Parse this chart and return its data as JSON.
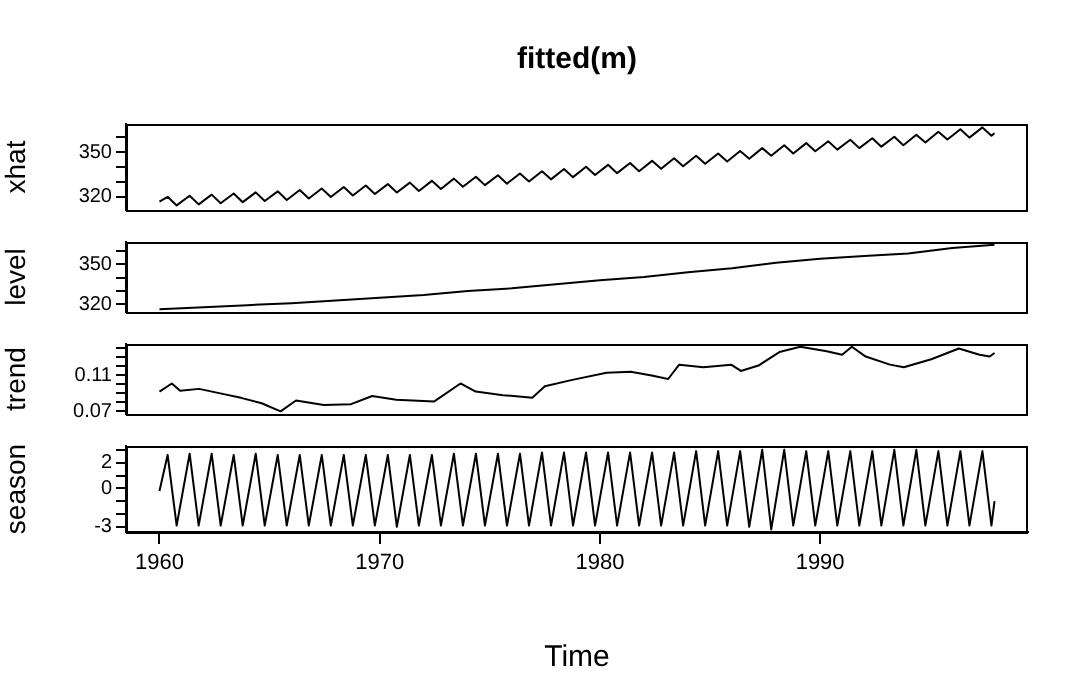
{
  "chart_data": [
    {
      "type": "line",
      "title": "fitted(m)",
      "ylabel": "xhat",
      "xlim": [
        1958.48,
        1999.44
      ],
      "ylim": [
        310.9,
        369.0
      ],
      "yticks": [
        320,
        {
          "value": 330,
          "label": null
        },
        {
          "value": 340,
          "label": null
        },
        350,
        {
          "value": 360,
          "label": null
        }
      ],
      "tick_labels": "y",
      "series": [
        {
          "color": "#000000",
          "x": [
            1960.0,
            1960.37,
            1960.78,
            1961.37,
            1961.78,
            1962.37,
            1962.78,
            1963.37,
            1963.78,
            1964.37,
            1964.78,
            1965.37,
            1965.78,
            1966.37,
            1966.78,
            1967.37,
            1967.78,
            1968.37,
            1968.78,
            1969.37,
            1969.78,
            1970.37,
            1970.78,
            1971.37,
            1971.78,
            1972.37,
            1972.78,
            1973.37,
            1973.78,
            1974.37,
            1974.78,
            1975.37,
            1975.78,
            1976.37,
            1976.78,
            1977.37,
            1977.78,
            1978.37,
            1978.78,
            1979.37,
            1979.78,
            1980.37,
            1980.78,
            1981.37,
            1981.78,
            1982.37,
            1982.78,
            1983.37,
            1983.78,
            1984.37,
            1984.78,
            1985.37,
            1985.78,
            1986.37,
            1986.78,
            1987.37,
            1987.78,
            1988.37,
            1988.78,
            1989.37,
            1989.78,
            1990.37,
            1990.78,
            1991.37,
            1991.78,
            1992.37,
            1992.78,
            1993.37,
            1993.78,
            1994.37,
            1994.78,
            1995.37,
            1995.78,
            1996.37,
            1996.78,
            1997.37,
            1997.78,
            1997.92
          ],
          "values": [
            316.5,
            319.8,
            314.0,
            320.5,
            314.7,
            321.3,
            315.5,
            322.0,
            316.2,
            322.8,
            317.0,
            323.5,
            317.7,
            324.4,
            318.7,
            325.4,
            319.7,
            326.4,
            320.7,
            327.4,
            321.7,
            328.4,
            322.7,
            329.4,
            323.7,
            330.6,
            325.1,
            332.1,
            326.6,
            333.4,
            327.7,
            334.4,
            328.7,
            335.6,
            330.1,
            337.1,
            331.6,
            338.6,
            333.1,
            340.1,
            334.6,
            341.4,
            335.8,
            342.7,
            337.1,
            344.1,
            338.7,
            345.9,
            340.5,
            347.6,
            342.1,
            349.1,
            343.6,
            350.7,
            345.5,
            352.7,
            347.5,
            354.6,
            349.1,
            356.1,
            350.6,
            357.4,
            351.7,
            358.4,
            352.7,
            359.4,
            353.7,
            360.4,
            354.7,
            361.7,
            356.5,
            363.7,
            358.5,
            365.4,
            359.8,
            366.7,
            361.1,
            362.8
          ]
        }
      ]
    },
    {
      "type": "line",
      "ylabel": "level",
      "xlim": [
        1958.48,
        1999.44
      ],
      "ylim": [
        314.4,
        366.5
      ],
      "yticks": [
        320,
        {
          "value": 330,
          "label": null
        },
        {
          "value": 340,
          "label": null
        },
        350,
        {
          "value": 360,
          "label": null
        }
      ],
      "tick_labels": "y",
      "series": [
        {
          "color": "#000000",
          "x": [
            1960,
            1962,
            1964,
            1966,
            1968,
            1970,
            1972,
            1974,
            1976,
            1978,
            1980,
            1982,
            1984,
            1986,
            1988,
            1990,
            1992,
            1994,
            1996,
            1997.92
          ],
          "values": [
            316.5,
            318,
            319.5,
            321,
            323,
            325,
            327,
            330,
            332,
            335,
            338,
            340.5,
            344,
            347,
            351,
            354,
            356,
            358,
            362,
            364.5
          ]
        }
      ]
    },
    {
      "type": "line",
      "ylabel": "trend",
      "xlim": [
        1958.48,
        1999.44
      ],
      "ylim": [
        0.067,
        0.145
      ],
      "yticks": [
        0.07,
        {
          "value": 0.08,
          "label": null
        },
        {
          "value": 0.09,
          "label": null
        },
        {
          "value": 0.1,
          "label": null
        },
        0.11,
        {
          "value": 0.12,
          "label": null
        },
        {
          "value": 0.13,
          "label": null
        },
        {
          "value": 0.14,
          "label": null
        }
      ],
      "tick_labels": "y",
      "series": [
        {
          "color": "#000000",
          "x": [
            1960.0,
            1960.56,
            1960.94,
            1961.8,
            1962.76,
            1963.7,
            1964.64,
            1965.5,
            1966.2,
            1967.46,
            1968.7,
            1969.66,
            1970.75,
            1972.48,
            1973.67,
            1974.36,
            1975.6,
            1976.93,
            1977.5,
            1978.75,
            1980.3,
            1981.4,
            1982.35,
            1983.1,
            1983.6,
            1984.7,
            1985.96,
            1986.4,
            1987.2,
            1988.15,
            1989.1,
            1990.3,
            1991.0,
            1991.44,
            1992.07,
            1993.17,
            1993.8,
            1995.05,
            1996.3,
            1997.24,
            1997.7,
            1997.92
          ],
          "values": [
            0.092,
            0.101,
            0.093,
            0.095,
            0.09,
            0.085,
            0.079,
            0.07,
            0.082,
            0.077,
            0.078,
            0.087,
            0.083,
            0.081,
            0.101,
            0.092,
            0.088,
            0.085,
            0.098,
            0.105,
            0.113,
            0.114,
            0.11,
            0.106,
            0.122,
            0.119,
            0.122,
            0.115,
            0.121,
            0.136,
            0.142,
            0.137,
            0.133,
            0.142,
            0.131,
            0.122,
            0.119,
            0.128,
            0.14,
            0.133,
            0.131,
            0.135
          ]
        }
      ]
    },
    {
      "type": "line",
      "xlabel": "Time",
      "ylabel": "season",
      "xlim": [
        1958.48,
        1999.44
      ],
      "xticks": [
        1960,
        1970,
        1980,
        1990
      ],
      "ylim": [
        -3.4,
        3.3
      ],
      "yticks": [
        -3,
        {
          "value": -2,
          "label": null
        },
        {
          "value": -1,
          "label": null
        },
        0,
        {
          "value": 1,
          "label": null
        },
        2,
        {
          "value": 3,
          "label": null
        }
      ],
      "series": [
        {
          "color": "#000000",
          "x": [
            1960.0,
            1960.37,
            1960.78,
            1961.37,
            1961.78,
            1962.37,
            1962.78,
            1963.37,
            1963.78,
            1964.37,
            1964.78,
            1965.37,
            1965.78,
            1966.37,
            1966.78,
            1967.37,
            1967.78,
            1968.37,
            1968.78,
            1969.37,
            1969.78,
            1970.37,
            1970.78,
            1971.37,
            1971.78,
            1972.37,
            1972.78,
            1973.37,
            1973.78,
            1974.37,
            1974.78,
            1975.37,
            1975.78,
            1976.37,
            1976.78,
            1977.37,
            1977.78,
            1978.37,
            1978.78,
            1979.37,
            1979.78,
            1980.37,
            1980.78,
            1981.37,
            1981.78,
            1982.37,
            1982.78,
            1983.37,
            1983.78,
            1984.37,
            1984.78,
            1985.37,
            1985.78,
            1986.37,
            1986.78,
            1987.37,
            1987.78,
            1988.37,
            1988.78,
            1989.37,
            1989.78,
            1990.37,
            1990.78,
            1991.37,
            1991.78,
            1992.37,
            1992.78,
            1993.37,
            1993.78,
            1994.37,
            1994.78,
            1995.37,
            1995.78,
            1996.37,
            1996.78,
            1997.37,
            1997.78,
            1997.92
          ],
          "values": [
            -0.2,
            2.6,
            -2.9,
            2.7,
            -2.9,
            2.7,
            -2.9,
            2.6,
            -2.9,
            2.7,
            -2.9,
            2.6,
            -2.9,
            2.6,
            -2.9,
            2.6,
            -2.9,
            2.6,
            -2.9,
            2.6,
            -2.9,
            2.6,
            -3.0,
            2.6,
            -2.9,
            2.6,
            -2.9,
            2.7,
            -2.9,
            2.7,
            -2.9,
            2.7,
            -2.9,
            2.7,
            -2.9,
            2.8,
            -2.9,
            2.8,
            -2.9,
            2.8,
            -2.9,
            2.8,
            -2.9,
            2.8,
            -2.9,
            2.8,
            -2.9,
            2.8,
            -2.9,
            2.9,
            -2.9,
            2.9,
            -2.9,
            2.9,
            -3.0,
            3.0,
            -3.2,
            3.0,
            -2.9,
            2.9,
            -2.9,
            2.9,
            -2.9,
            2.9,
            -2.9,
            2.9,
            -2.9,
            3.0,
            -2.9,
            3.0,
            -2.9,
            2.9,
            -2.9,
            2.9,
            -2.9,
            2.9,
            -2.9,
            -1.0
          ]
        }
      ]
    }
  ]
}
